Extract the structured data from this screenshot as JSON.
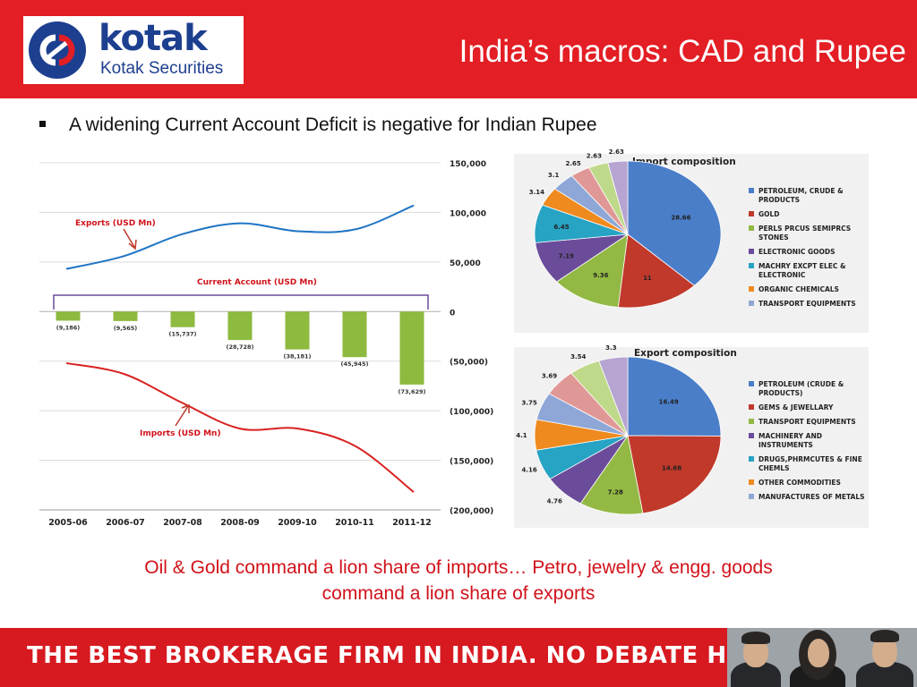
{
  "header": {
    "logo_word": "kotak",
    "logo_sub": "Kotak Securities",
    "title": "India’s macros: CAD and Rupee"
  },
  "bullet": "A widening Current Account Deficit is negative for Indian Rupee",
  "caption": {
    "line1": "Oil & Gold command a lion share of imports… Petro, jewelry & engg. goods",
    "line2": "command a lion share of exports"
  },
  "footer": {
    "slogan": "THE BEST BROKERAGE FIRM IN INDIA. NO DEBATE HERE."
  },
  "colors": {
    "brand_red": "#e31e24",
    "brand_blue": "#1d3f8f",
    "caption_red": "#d0121a"
  },
  "chart_data": [
    {
      "type": "bar+line",
      "categories": [
        "2005-06",
        "2006-07",
        "2007-08",
        "2008-09",
        "2009-10",
        "2010-11",
        "2011-12"
      ],
      "ylim": [
        -200000,
        150000
      ],
      "yticks": [
        150000,
        100000,
        50000,
        0,
        -50000,
        -100000,
        -150000,
        -200000
      ],
      "ytick_labels": [
        "150,000",
        "100,000",
        "50,000",
        "0",
        "(50,000)",
        "(100,000)",
        "(150,000)",
        "(200,000)"
      ],
      "grid": true,
      "series": [
        {
          "name": "Exports (USD Mn)",
          "kind": "line",
          "color": "#1f74c4",
          "values": [
            43000,
            56000,
            78000,
            89000,
            81000,
            83000,
            107000
          ]
        },
        {
          "name": "Imports (USD Mn)",
          "kind": "line",
          "color": "#d92121",
          "values": [
            -52000,
            -63000,
            -92000,
            -118000,
            -118000,
            -136000,
            -182000
          ]
        },
        {
          "name": "Current Account (USD Mn)",
          "kind": "bar",
          "color": "#8dba3f",
          "values": [
            -9186,
            -9565,
            -15737,
            -28728,
            -38181,
            -45945,
            -73629
          ],
          "labels": [
            "(9,186)",
            "(9,565)",
            "(15,737)",
            "(28,728)",
            "(38,181)",
            "(45,945)",
            "(73,629)"
          ]
        }
      ]
    },
    {
      "type": "pie",
      "title": "Import composition",
      "slices": [
        {
          "label": "PETROLEUM, CRUDE & PRODUCTS",
          "value": 28.66,
          "color": "#4a7ec9"
        },
        {
          "label": "GOLD",
          "value": 11,
          "color": "#c0392b"
        },
        {
          "label": "PERLS PRCUS SEMIPRCS STONES",
          "value": 9.36,
          "color": "#93b944"
        },
        {
          "label": "ELECTRONIC GOODS",
          "value": 7.19,
          "color": "#6b4c9a"
        },
        {
          "label": "MACHRY EXCPT ELEC & ELECTRONIC",
          "value": 6.45,
          "color": "#27a3c4"
        },
        {
          "label": "ORGANIC CHEMICALS",
          "value": 3.14,
          "color": "#ef8a1e"
        },
        {
          "label": "TRANSPORT EQUIPMENTS",
          "value": 3.1,
          "color": "#8ea7d6"
        },
        {
          "value": 2.65,
          "color": "#e09896"
        },
        {
          "value": 2.63,
          "color": "#bfd98a"
        },
        {
          "value": 2.63,
          "color": "#b6a4d1"
        }
      ]
    },
    {
      "type": "pie",
      "title": "Export composition",
      "slices": [
        {
          "label": "PETROLEUM (CRUDE & PRODUCTS)",
          "value": 16.49,
          "color": "#4a7ec9"
        },
        {
          "label": "GEMS & JEWELLARY",
          "value": 14.68,
          "color": "#c0392b"
        },
        {
          "label": "TRANSPORT EQUIPMENTS",
          "value": 7.28,
          "color": "#93b944"
        },
        {
          "label": "MACHINERY AND INSTRUMENTS",
          "value": 4.76,
          "color": "#6b4c9a"
        },
        {
          "label": "DRUGS,PHRMCUTES & FINE CHEMLS",
          "value": 4.16,
          "color": "#27a3c4"
        },
        {
          "label": "OTHER COMMODITIES",
          "value": 4.1,
          "color": "#ef8a1e"
        },
        {
          "label": "MANUFACTURES OF METALS",
          "value": 3.75,
          "color": "#8ea7d6"
        },
        {
          "value": 3.69,
          "color": "#e09896"
        },
        {
          "value": 3.54,
          "color": "#bfd98a"
        },
        {
          "value": 3.3,
          "color": "#b6a4d1"
        }
      ]
    }
  ]
}
